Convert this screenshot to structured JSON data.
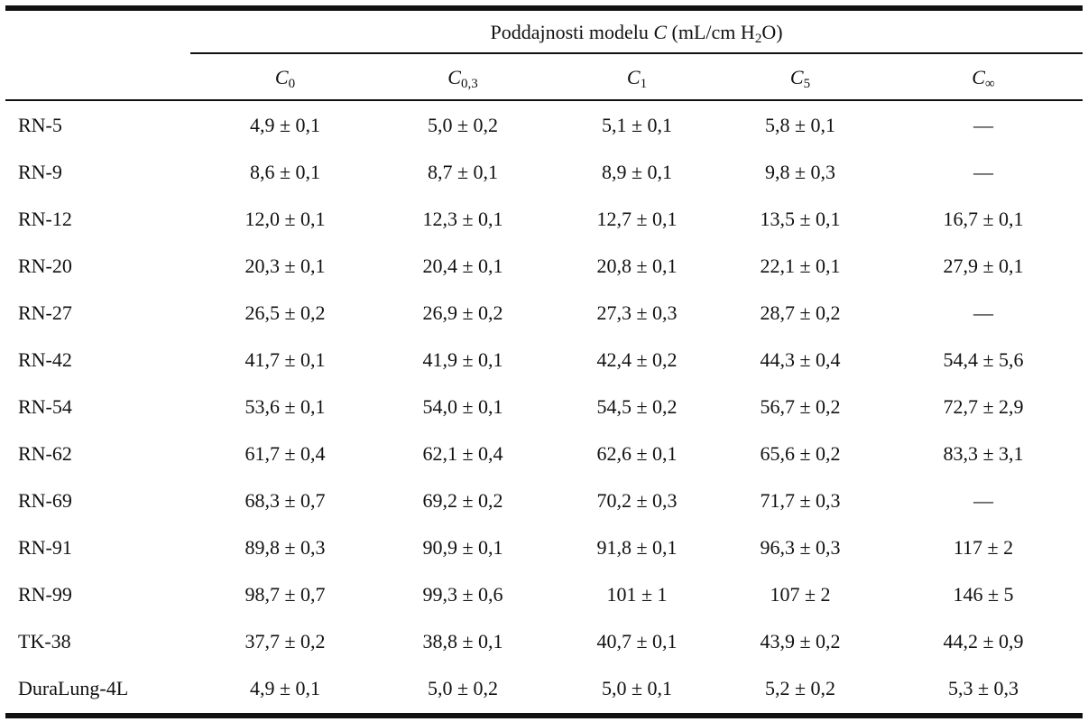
{
  "table": {
    "group_header": {
      "prefix": "Poddajnosti modelu ",
      "var": "C",
      "unit_pre": " (mL/cm H",
      "unit_sub": "2",
      "unit_post": "O)"
    },
    "columns": [
      {
        "base": "C",
        "sub": "0"
      },
      {
        "base": "C",
        "sub": "0,3"
      },
      {
        "base": "C",
        "sub": "1"
      },
      {
        "base": "C",
        "sub": "5"
      },
      {
        "base": "C",
        "sub": "∞"
      }
    ],
    "rows": [
      {
        "name": "RN-5",
        "values": [
          "4,9 ± 0,1",
          "5,0 ± 0,2",
          "5,1 ± 0,1",
          "5,8 ± 0,1",
          "—"
        ]
      },
      {
        "name": "RN-9",
        "values": [
          "8,6 ± 0,1",
          "8,7 ± 0,1",
          "8,9 ± 0,1",
          "9,8 ± 0,3",
          "—"
        ]
      },
      {
        "name": "RN-12",
        "values": [
          "12,0 ± 0,1",
          "12,3 ± 0,1",
          "12,7 ± 0,1",
          "13,5 ± 0,1",
          "16,7 ± 0,1"
        ]
      },
      {
        "name": "RN-20",
        "values": [
          "20,3 ± 0,1",
          "20,4 ± 0,1",
          "20,8 ± 0,1",
          "22,1 ± 0,1",
          "27,9 ± 0,1"
        ]
      },
      {
        "name": "RN-27",
        "values": [
          "26,5 ± 0,2",
          "26,9 ± 0,2",
          "27,3 ± 0,3",
          "28,7 ± 0,2",
          "—"
        ]
      },
      {
        "name": "RN-42",
        "values": [
          "41,7 ± 0,1",
          "41,9 ± 0,1",
          "42,4 ± 0,2",
          "44,3 ± 0,4",
          "54,4 ± 5,6"
        ]
      },
      {
        "name": "RN-54",
        "values": [
          "53,6 ± 0,1",
          "54,0 ± 0,1",
          "54,5 ± 0,2",
          "56,7 ± 0,2",
          "72,7 ± 2,9"
        ]
      },
      {
        "name": "RN-62",
        "values": [
          "61,7 ± 0,4",
          "62,1 ± 0,4",
          "62,6 ± 0,1",
          "65,6 ± 0,2",
          "83,3 ± 3,1"
        ]
      },
      {
        "name": "RN-69",
        "values": [
          "68,3 ± 0,7",
          "69,2 ± 0,2",
          "70,2 ± 0,3",
          "71,7 ± 0,3",
          "—"
        ]
      },
      {
        "name": "RN-91",
        "values": [
          "89,8 ± 0,3",
          "90,9 ± 0,1",
          "91,8 ± 0,1",
          "96,3 ± 0,3",
          "117 ± 2"
        ]
      },
      {
        "name": "RN-99",
        "values": [
          "98,7 ± 0,7",
          "99,3 ± 0,6",
          "101 ± 1",
          "107 ± 2",
          "146 ± 5"
        ]
      },
      {
        "name": "TK-38",
        "values": [
          "37,7 ± 0,2",
          "38,8 ± 0,1",
          "40,7 ± 0,1",
          "43,9 ± 0,2",
          "44,2 ± 0,9"
        ]
      },
      {
        "name": "DuraLung-4L",
        "values": [
          "4,9 ± 0,1",
          "5,0 ± 0,2",
          "5,0 ± 0,1",
          "5,2 ± 0,2",
          "5,3 ± 0,3"
        ]
      }
    ]
  }
}
